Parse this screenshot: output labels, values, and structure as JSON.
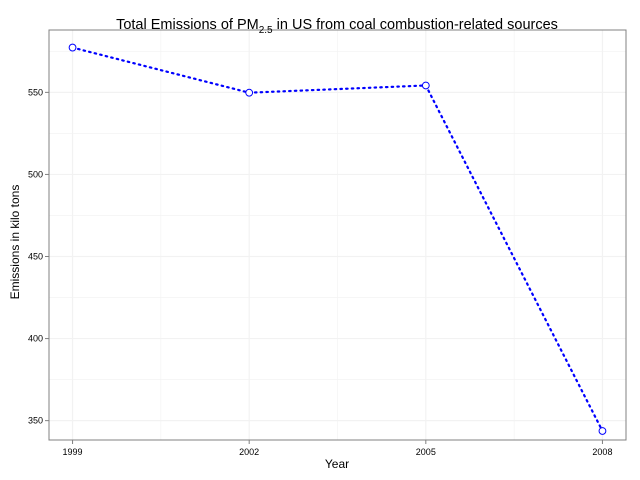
{
  "chart_data": {
    "type": "line",
    "title": {
      "prefix": "Total Emissions of PM",
      "subscript": "2.5",
      "suffix": " in US from coal combustion-related sources"
    },
    "xlabel": "Year",
    "ylabel": "Emissions in kilo tons",
    "x": [
      1999,
      2002,
      2005,
      2008
    ],
    "x_tick_labels": [
      "1999",
      "2002",
      "2005",
      "2008"
    ],
    "y_ticks": [
      350,
      400,
      450,
      500,
      550
    ],
    "y_tick_labels": [
      "350",
      "400",
      "450",
      "500",
      "550"
    ],
    "xlim": [
      1998.6,
      2008.4
    ],
    "ylim": [
      338.2,
      588
    ],
    "series": [
      {
        "values": [
          577.3,
          549.8,
          554.2,
          343.7
        ],
        "line_style": "dotted",
        "marker": "open-circle",
        "color": "#0000ff"
      }
    ],
    "grid": true,
    "legend": "none"
  },
  "colors": {
    "series": "#0000ff",
    "axis_border": "#808080",
    "grid": "#f2f2f2",
    "text": "#000000"
  }
}
